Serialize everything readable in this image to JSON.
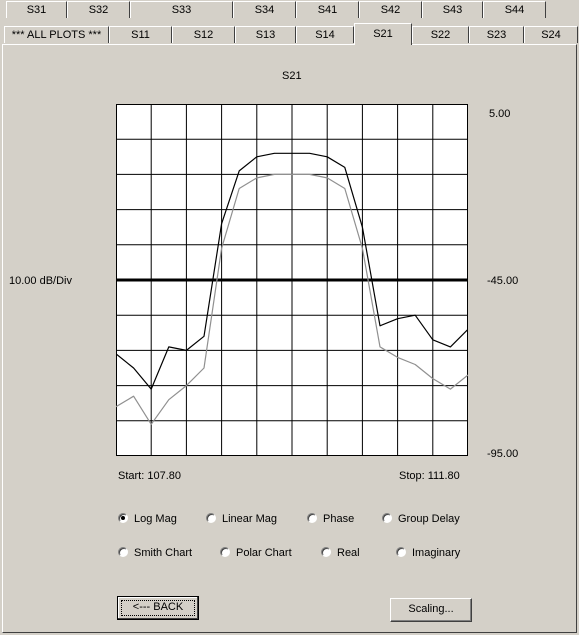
{
  "tabs_row1": [
    "S31",
    "S32",
    "S33",
    "S34",
    "S41",
    "S42",
    "S43",
    "S44"
  ],
  "tabs_row2": [
    "*** ALL PLOTS ***",
    "S11",
    "S12",
    "S13",
    "S14",
    "S21",
    "S22",
    "S23",
    "S24"
  ],
  "active_tab": "S21",
  "plot": {
    "title": "S21",
    "scale_label": "10.00 dB/Div",
    "ref_top": "5.00",
    "ref_mid": "-45.00",
    "ref_bottom": "-95.00",
    "start_label": "Start: 107.80",
    "stop_label": "Stop:  111.80"
  },
  "formats": {
    "options": [
      "Log Mag",
      "Linear Mag",
      "Phase",
      "Group Delay",
      "Smith Chart",
      "Polar Chart",
      "Real",
      "Imaginary"
    ],
    "selected": "Log Mag"
  },
  "buttons": {
    "back": "<--- BACK",
    "scaling": "Scaling..."
  },
  "chart_data": {
    "type": "line",
    "title": "S21",
    "xlabel": "",
    "ylabel": "",
    "xlim": [
      107.8,
      111.8
    ],
    "ylim": [
      -95,
      5
    ],
    "grid": true,
    "x": [
      107.8,
      108.0,
      108.2,
      108.4,
      108.6,
      108.8,
      109.0,
      109.2,
      109.4,
      109.6,
      109.8,
      110.0,
      110.2,
      110.4,
      110.6,
      110.8,
      111.0,
      111.2,
      111.4,
      111.6,
      111.8
    ],
    "series": [
      {
        "color": "#000000",
        "values": [
          -66,
          -70,
          -76,
          -64,
          -65,
          -61,
          -29,
          -14,
          -10,
          -9,
          -9,
          -9,
          -10,
          -13,
          -30,
          -58,
          -56,
          -55,
          -62,
          -64,
          -59
        ]
      },
      {
        "color": "#909090",
        "values": [
          -81,
          -78,
          -86,
          -79,
          -75,
          -70,
          -36,
          -19,
          -16,
          -15,
          -15,
          -15,
          -16,
          -19,
          -36,
          -64,
          -67,
          -69,
          -73,
          -76,
          -72
        ]
      }
    ]
  }
}
